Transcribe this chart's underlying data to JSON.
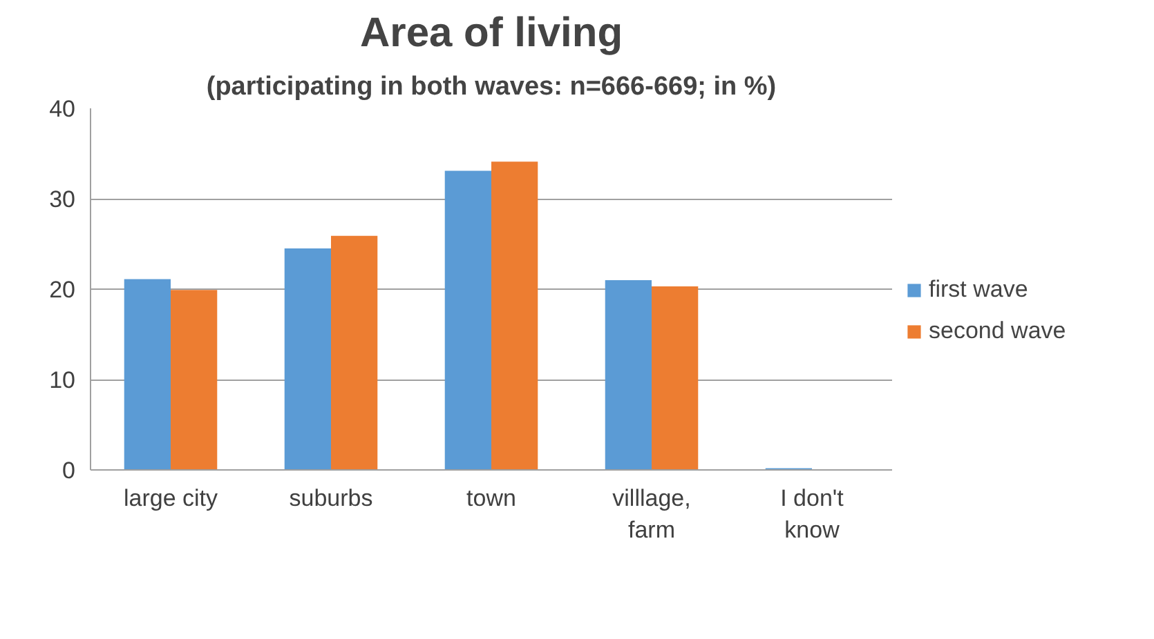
{
  "chart_data": {
    "type": "bar",
    "title": "Area of living",
    "subtitle": "(participating in both waves: n=666-669; in %)",
    "categories": [
      "large city",
      "suburbs",
      "town",
      "villlage, farm",
      "I don't know"
    ],
    "series": [
      {
        "name": "first wave",
        "color": "#5b9bd5",
        "values": [
          21.1,
          24.5,
          33.1,
          21.0,
          0.2
        ]
      },
      {
        "name": "second wave",
        "color": "#ed7d31",
        "values": [
          19.9,
          25.9,
          34.1,
          20.3,
          0
        ]
      }
    ],
    "ylim": [
      0,
      40
    ],
    "yticks": [
      0,
      10,
      20,
      30,
      40
    ],
    "grid": "y",
    "legend": "right"
  }
}
